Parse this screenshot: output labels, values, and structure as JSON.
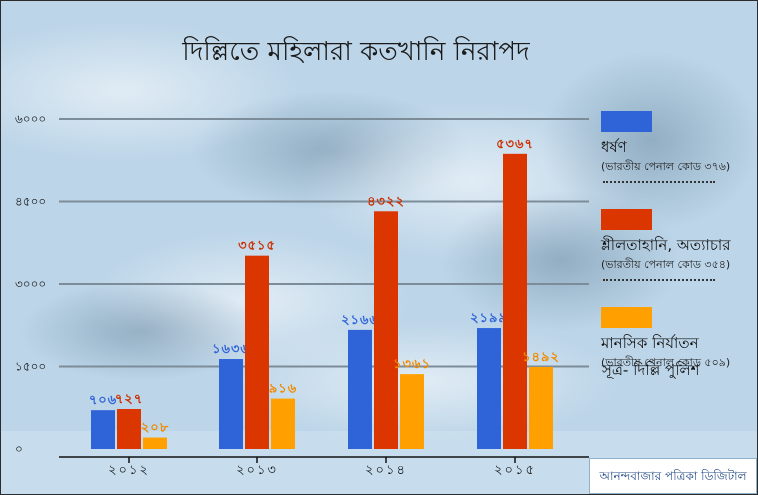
{
  "title": "দিল্লিতে মহিলারা কতখানি নিরাপদ",
  "chart_data": {
    "type": "bar",
    "title": "দিল্লিতে মহিলারা কতখানি নিরাপদ",
    "categories": [
      "২০১২",
      "২০১৩",
      "২০১৪",
      "২০১৫"
    ],
    "y_ticks": [
      "০",
      "১৫০০",
      "৩০০০",
      "৪৫০০",
      "৬০০০"
    ],
    "ylim": [
      0,
      6000
    ],
    "grid": true,
    "legend_placement": "right",
    "series": [
      {
        "name": "ধর্ষণ",
        "code": "(ভারতীয় পেনাল কোড ৩৭৬)",
        "color": "#2f63d8",
        "label_color": "#2f63d8",
        "values": [
          706,
          1636,
          2166,
          2199
        ],
        "labels": [
          "৭০৬",
          "১৬৩৬",
          "২১৬৬",
          "২১৯৯"
        ]
      },
      {
        "name": "শ্লীলতাহানি, অত্যাচার",
        "code": "(ভারতীয় পেনাল কোড ৩৫৪)",
        "color": "#db3500",
        "label_color": "#cc2e00",
        "values": [
          727,
          3515,
          4322,
          5367
        ],
        "labels": [
          "৭২৭",
          "৩৫১৫",
          "৪৩২২",
          "৫৩৬৭"
        ]
      },
      {
        "name": "মানসিক নির্যাতন",
        "code": "(ভারতীয় পেনাল কোড ৫০৯)",
        "color": "#ff9f00",
        "label_color": "#f08a00",
        "values": [
          208,
          916,
          1361,
          1492
        ],
        "labels": [
          "২০৮",
          "৯১৬",
          "১৩৬১",
          "১৪৯২"
        ]
      }
    ]
  },
  "source": "সূত্র- দিল্লি পুলিশ",
  "credit": "আনন্দবাজার পত্রিকা ডিজিটাল",
  "colors": {
    "grid": "#7d8c99",
    "axis": "#111111",
    "background": "#b9d3e6"
  }
}
